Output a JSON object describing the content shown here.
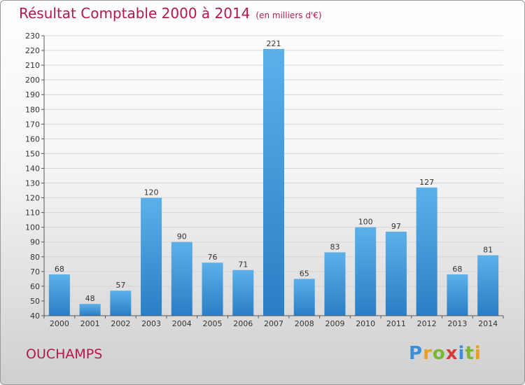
{
  "title": "Résultat Comptable 2000 à 2014",
  "unit": "(en milliers d'€)",
  "commune": "OUCHAMPS",
  "logo": {
    "letters": [
      "P",
      "r",
      "o",
      "x",
      "i",
      "t",
      "i"
    ],
    "colors": [
      "#3a8fd6",
      "#e8a020",
      "#7ab832",
      "#d63b3b",
      "#3a8fd6",
      "#7ab832",
      "#e8a020"
    ]
  },
  "colors": {
    "bar_light": "#5cb0ea",
    "bar_dark": "#2a7ec4",
    "title": "#b5174b"
  },
  "chart_data": {
    "type": "bar",
    "categories": [
      "2000",
      "2001",
      "2002",
      "2003",
      "2004",
      "2005",
      "2006",
      "2007",
      "2008",
      "2009",
      "2010",
      "2011",
      "2012",
      "2013",
      "2014"
    ],
    "values": [
      68,
      48,
      57,
      120,
      90,
      76,
      71,
      221,
      65,
      83,
      100,
      97,
      127,
      68,
      81
    ],
    "ylim": [
      40,
      230
    ],
    "yticks": [
      40,
      50,
      60,
      70,
      80,
      90,
      100,
      110,
      120,
      130,
      140,
      150,
      160,
      170,
      180,
      190,
      200,
      210,
      220,
      230
    ],
    "grid": "horizontal",
    "title": "Résultat Comptable 2000 à 2014",
    "xlabel": "",
    "ylabel": ""
  }
}
